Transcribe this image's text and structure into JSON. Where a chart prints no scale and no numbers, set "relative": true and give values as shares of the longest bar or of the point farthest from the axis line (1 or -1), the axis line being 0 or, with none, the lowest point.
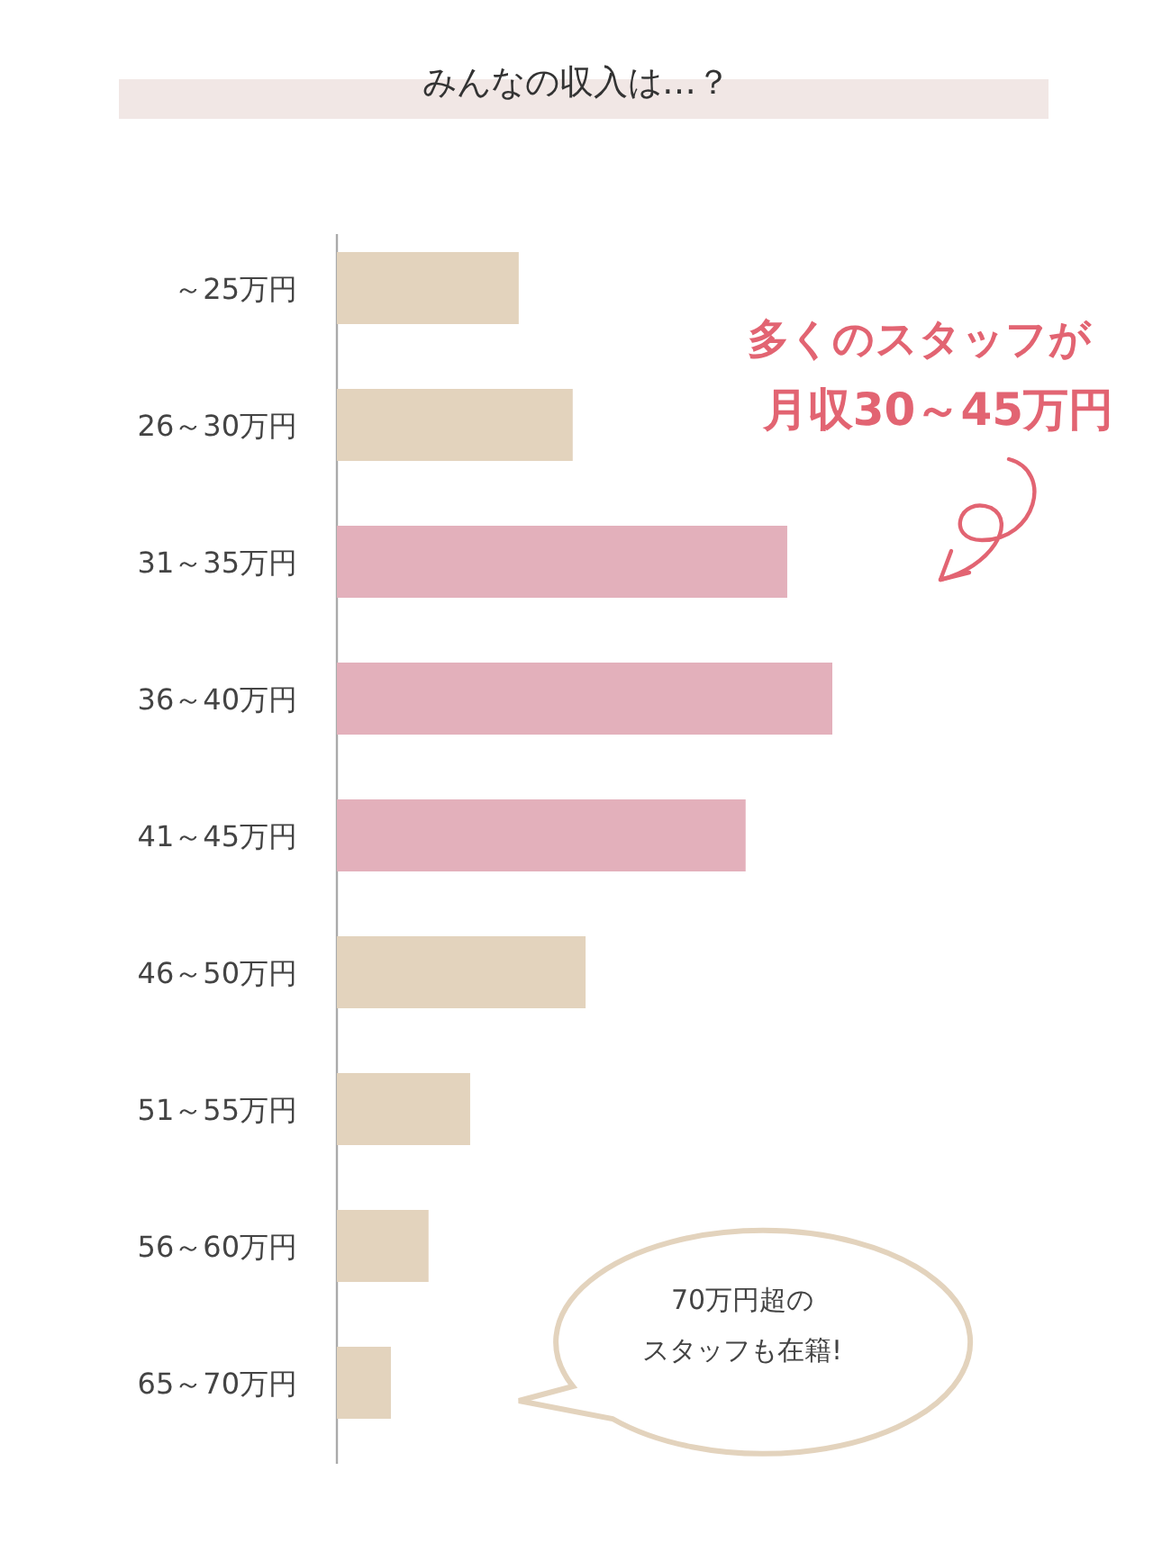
{
  "chart_data": {
    "type": "bar",
    "orientation": "horizontal",
    "relative": true,
    "title": "みんなの収入は…？",
    "categories": [
      "～25万円",
      "26～30万円",
      "31～35万円",
      "36～40万円",
      "41～45万円",
      "46～50万円",
      "51～55万円",
      "56～60万円",
      "65～70万円"
    ],
    "values": [
      0.367,
      0.476,
      0.909,
      1,
      0.825,
      0.502,
      0.269,
      0.185,
      0.109
    ],
    "colors": [
      "#e3d3bd",
      "#e3d3bd",
      "#e3b0bb",
      "#e3b0bb",
      "#e3b0bb",
      "#e3d3bd",
      "#e3d3bd",
      "#e3d3bd",
      "#e3d3bd"
    ],
    "annotations": [
      "多くのスタッフが",
      "月収30～45万円",
      "70万円超の",
      "スタッフも在籍!"
    ]
  }
}
